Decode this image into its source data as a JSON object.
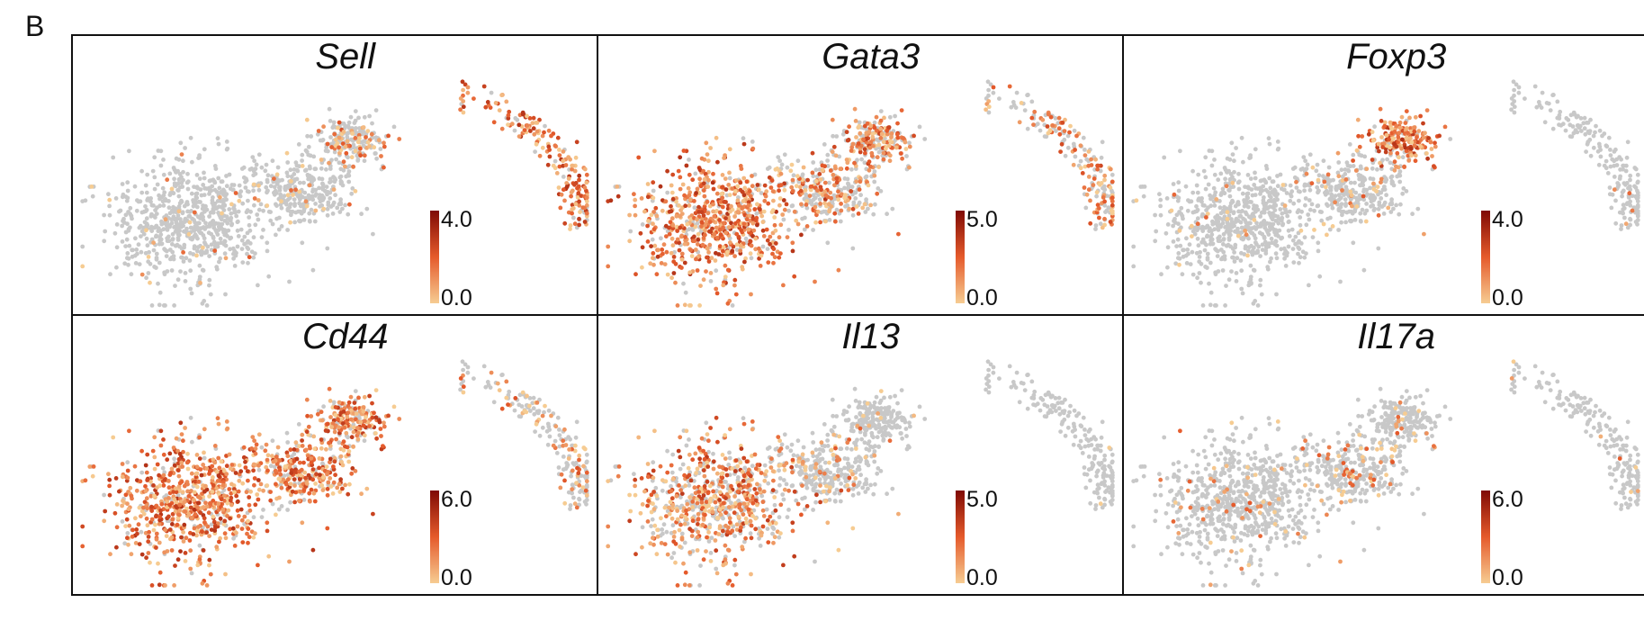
{
  "figure": {
    "panel_letter": "B"
  },
  "colors": {
    "no_expression": "#c8c8c8",
    "low": "#f6cc92",
    "mid": "#e55a2b",
    "high": "#7f0a04",
    "frame": "#111111"
  },
  "chart_data": [
    {
      "type": "scatter",
      "title": "Sell",
      "colorbar": {
        "max_label": "4.0",
        "min_label": "0.0",
        "max": 4.0,
        "min": 0.0
      }
    },
    {
      "type": "scatter",
      "title": "Gata3",
      "colorbar": {
        "max_label": "5.0",
        "min_label": "0.0",
        "max": 5.0,
        "min": 0.0
      }
    },
    {
      "type": "scatter",
      "title": "Foxp3",
      "colorbar": {
        "max_label": "4.0",
        "min_label": "0.0",
        "max": 4.0,
        "min": 0.0
      }
    },
    {
      "type": "scatter",
      "title": "Cd44",
      "colorbar": {
        "max_label": "6.0",
        "min_label": "0.0",
        "max": 6.0,
        "min": 0.0
      }
    },
    {
      "type": "scatter",
      "title": "Il13",
      "colorbar": {
        "max_label": "5.0",
        "min_label": "0.0",
        "max": 5.0,
        "min": 0.0
      }
    },
    {
      "type": "scatter",
      "title": "Il17a",
      "colorbar": {
        "max_label": "6.0",
        "min_label": "0.0",
        "max": 6.0,
        "min": 0.0
      }
    }
  ]
}
